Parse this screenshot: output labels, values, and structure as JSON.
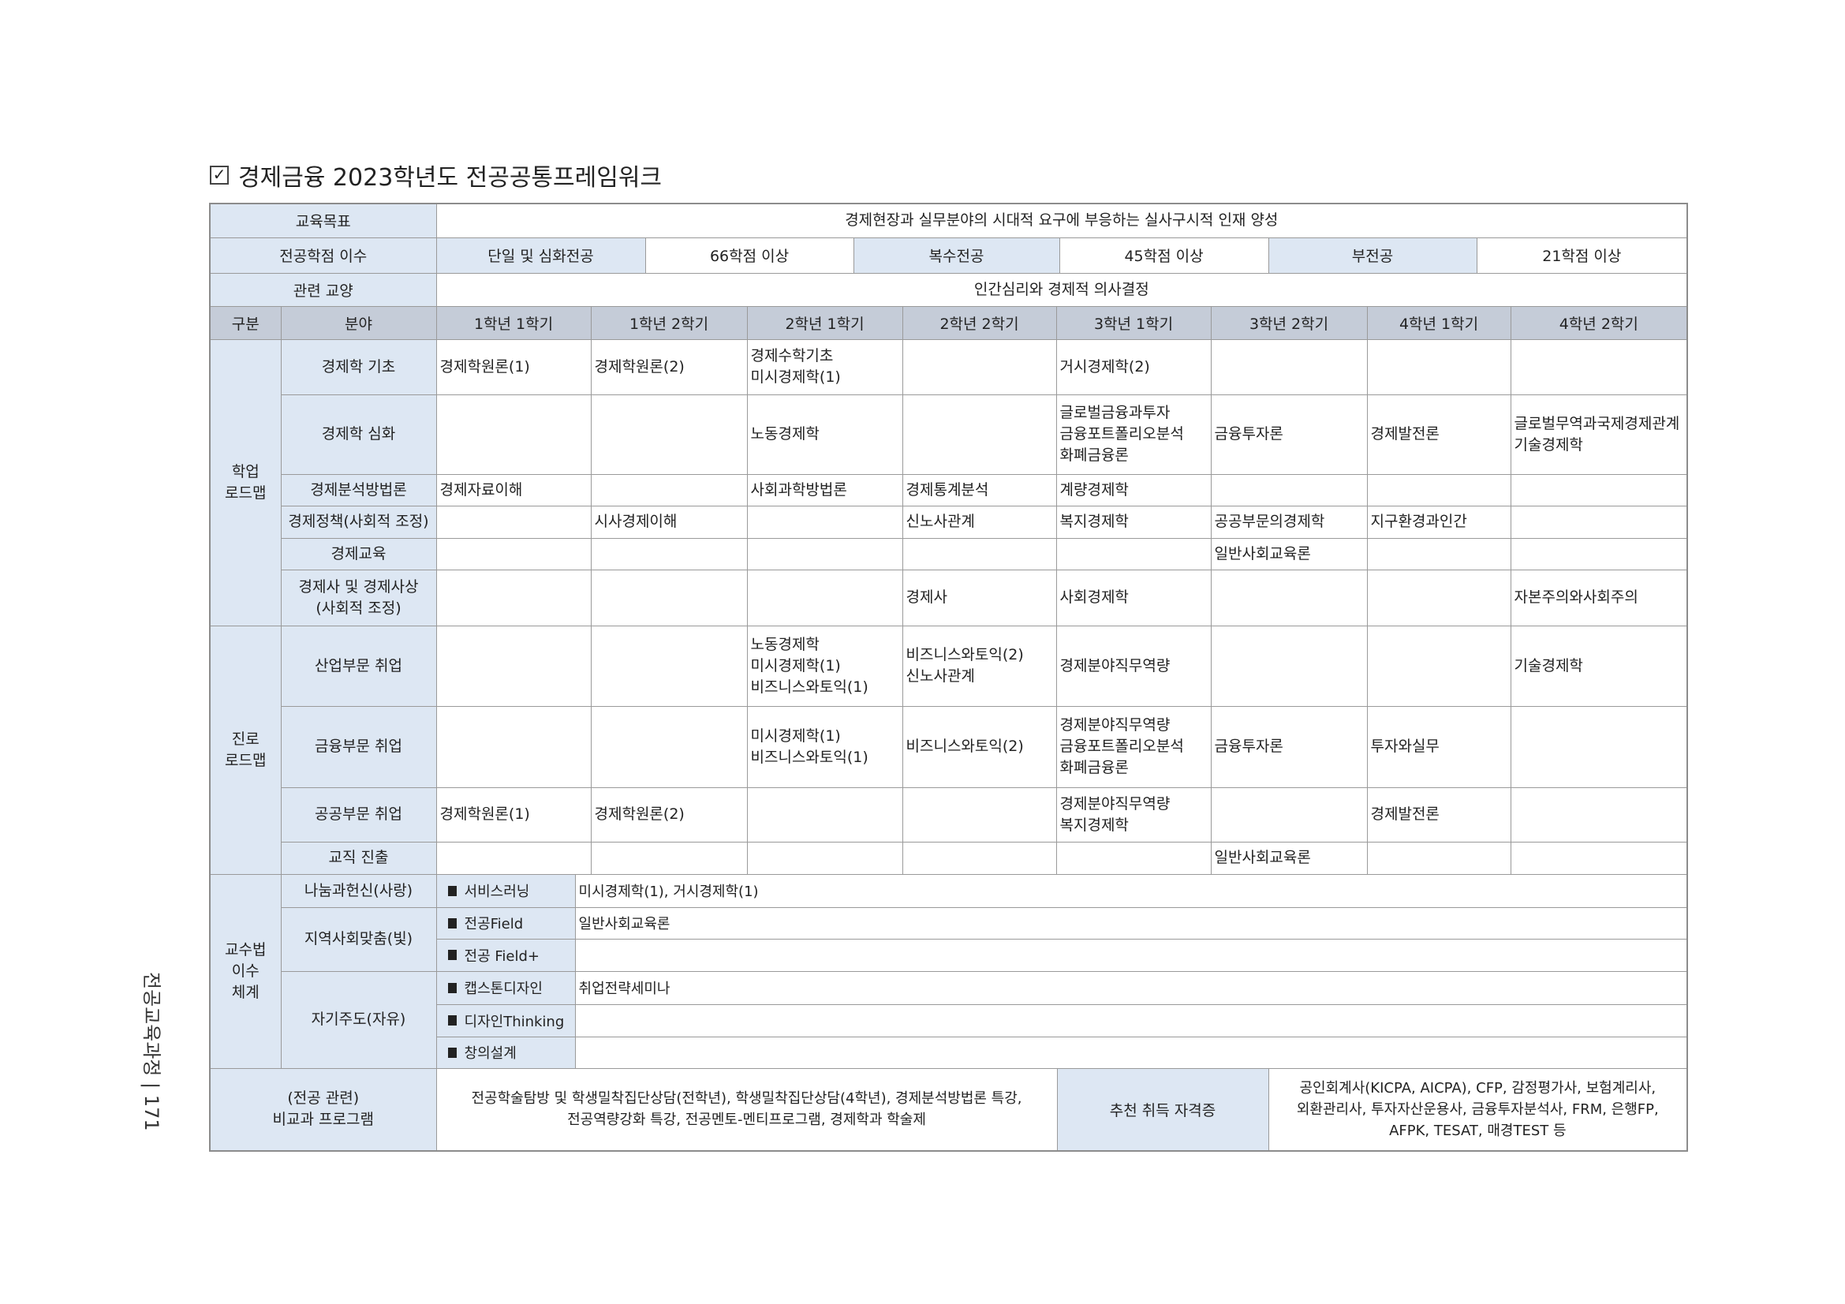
{
  "title": "경제금융 2023학년도 전공공통프레임워크",
  "title_icon": "checkbox-checked-icon",
  "goal": {
    "label": "교육목표",
    "value": "경제현장과 실무분야의 시대적 요구에 부응하는 실사구시적 인재 양성"
  },
  "credits": {
    "label": "전공학점 이수",
    "items": [
      {
        "label": "단일 및 심화전공",
        "value": "66학점 이상"
      },
      {
        "label": "복수전공",
        "value": "45학점 이상"
      },
      {
        "label": "부전공",
        "value": "21학점 이상"
      }
    ]
  },
  "related": {
    "label": "관련 교양",
    "value": "인간심리와 경제적 의사결정"
  },
  "header": [
    "구분",
    "분야",
    "1학년 1학기",
    "1학년 2학기",
    "2학년 1학기",
    "2학년 2학기",
    "3학년 1학기",
    "3학년 2학기",
    "4학년 1학기",
    "4학년 2학기"
  ],
  "sections": [
    {
      "name": "학업\n로드맵",
      "rows": [
        {
          "field": "경제학 기초",
          "cells": [
            "경제학원론(1)",
            "경제학원론(2)",
            "경제수학기초\n미시경제학(1)",
            "",
            "거시경제학(2)",
            "",
            "",
            ""
          ]
        },
        {
          "field": "경제학 심화",
          "cells": [
            "",
            "",
            "노동경제학",
            "",
            "글로벌금융과투자\n금융포트폴리오분석\n화폐금융론",
            "금융투자론",
            "경제발전론",
            "글로벌무역과국제경제관계\n기술경제학"
          ]
        },
        {
          "field": "경제분석방법론",
          "cells": [
            "경제자료이해",
            "",
            "사회과학방법론",
            "경제통계분석",
            "계량경제학",
            "",
            "",
            ""
          ]
        },
        {
          "field": "경제정책(사회적 조정)",
          "cells": [
            "",
            "시사경제이해",
            "",
            "신노사관계",
            "복지경제학",
            "공공부문의경제학",
            "지구환경과인간",
            ""
          ]
        },
        {
          "field": "경제교육",
          "cells": [
            "",
            "",
            "",
            "",
            "",
            "일반사회교육론",
            "",
            ""
          ]
        },
        {
          "field": "경제사 및 경제사상\n(사회적 조정)",
          "cells": [
            "",
            "",
            "",
            "경제사",
            "사회경제학",
            "",
            "",
            "자본주의와사회주의"
          ]
        }
      ]
    },
    {
      "name": "진로\n로드맵",
      "rows": [
        {
          "field": "산업부문 취업",
          "cells": [
            "",
            "",
            "노동경제학\n미시경제학(1)\n비즈니스와토익(1)",
            "비즈니스와토익(2)\n신노사관계",
            "경제분야직무역량",
            "",
            "",
            "기술경제학"
          ]
        },
        {
          "field": "금융부문 취업",
          "cells": [
            "",
            "",
            "미시경제학(1)\n비즈니스와토익(1)",
            "비즈니스와토익(2)",
            "경제분야직무역량\n금융포트폴리오분석\n화폐금융론",
            "금융투자론",
            "투자와실무",
            ""
          ]
        },
        {
          "field": "공공부문 취업",
          "cells": [
            "경제학원론(1)",
            "경제학원론(2)",
            "",
            "",
            "경제분야직무역량\n복지경제학",
            "",
            "경제발전론",
            ""
          ]
        },
        {
          "field": "교직 진출",
          "cells": [
            "",
            "",
            "",
            "",
            "",
            "일반사회교육론",
            "",
            ""
          ]
        }
      ]
    }
  ],
  "method": {
    "name": "교수법\n이수\n체계",
    "groups": [
      {
        "field": "나눔과헌신(사랑)",
        "items": [
          {
            "label": "서비스러닝",
            "value": "미시경제학(1), 거시경제학(1)"
          }
        ]
      },
      {
        "field": "지역사회맞춤(빛)",
        "items": [
          {
            "label": "전공Field",
            "value": "일반사회교육론"
          },
          {
            "label": "전공 Field+",
            "value": ""
          }
        ]
      },
      {
        "field": "자기주도(자유)",
        "items": [
          {
            "label": "캡스톤디자인",
            "value": "취업전략세미나"
          },
          {
            "label": "디자인Thinking",
            "value": ""
          },
          {
            "label": "창의설계",
            "value": ""
          }
        ]
      }
    ]
  },
  "extra": {
    "label": "(전공 관련)\n비교과 프로그램",
    "value": "전공학술탐방 및 학생밀착집단상담(전학년), 학생밀착집단상담(4학년), 경제분석방법론 특강,\n전공역량강화 특강, 전공멘토-멘티프로그램, 경제학과 학술제",
    "cert_label": "추천 취득 자격증",
    "cert_value": "공인회계사(KICPA, AICPA), CFP, 감정평가사, 보험계리사,\n외환관리사, 투자자산운용사, 금융투자분석사, FRM, 은행FP,\nAFPK, TESAT, 매경TEST 등"
  },
  "side_text": "전공교육과정 | 171",
  "colors": {
    "label_bg": "#dde7f3",
    "header_bg": "#c5ccd8",
    "border": "#9a9a9a"
  }
}
